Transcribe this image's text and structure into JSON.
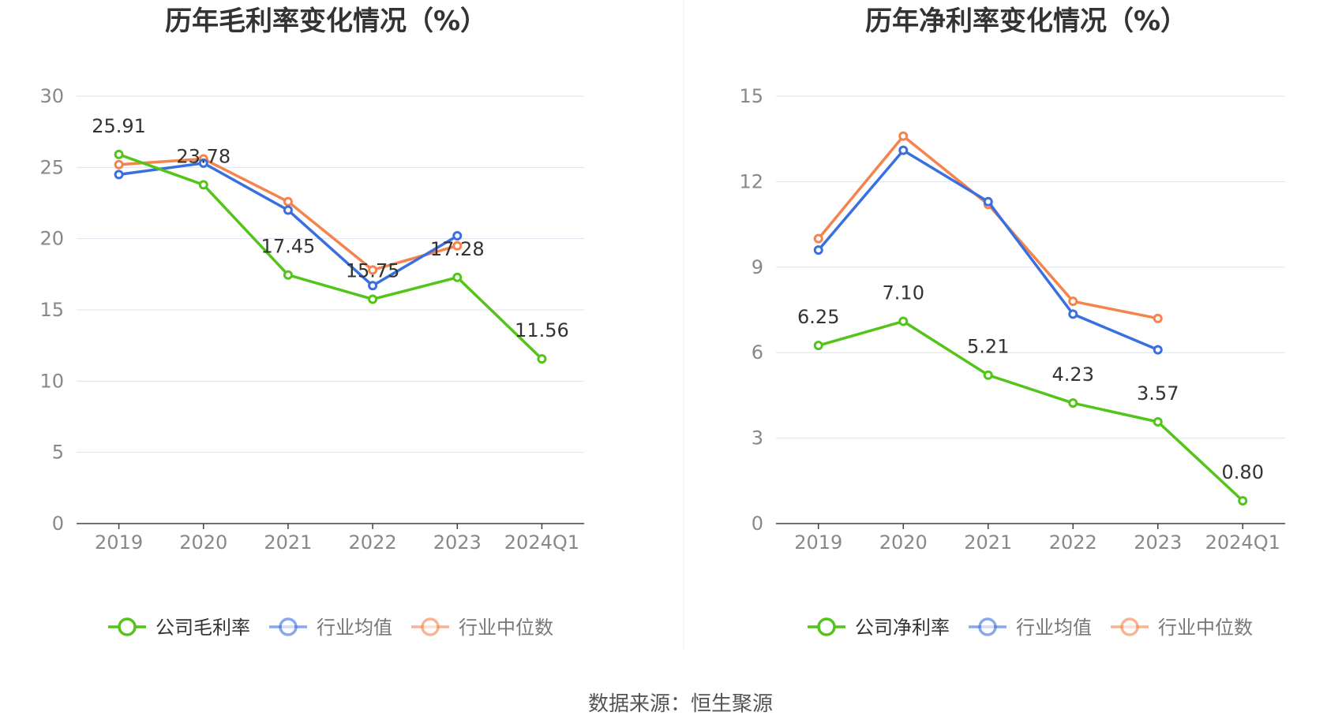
{
  "source_label": "数据来源：恒生聚源",
  "colors": {
    "company": "#52c41a",
    "avg": "#3a6fe0",
    "median": "#f5834d",
    "grid": "#dfe3ef",
    "axis": "#444444"
  },
  "chart_data": [
    {
      "type": "line",
      "title": "历年毛利率变化情况（%）",
      "categories": [
        "2019",
        "2020",
        "2021",
        "2022",
        "2023",
        "2024Q1"
      ],
      "y_ticks": [
        "0",
        "5",
        "10",
        "15",
        "20",
        "25",
        "30"
      ],
      "ylim": [
        0,
        30
      ],
      "grid": true,
      "legend_position": "bottom-center",
      "series": [
        {
          "name": "公司毛利率",
          "color_key": "company",
          "labels": true,
          "values": [
            25.91,
            23.78,
            17.45,
            15.75,
            17.28,
            11.56
          ],
          "label_text": [
            "25.91",
            "23.78",
            "17.45",
            "15.75",
            "17.28",
            "11.56"
          ]
        },
        {
          "name": "行业均值",
          "color_key": "avg",
          "values": [
            24.5,
            25.3,
            22.0,
            16.7,
            20.2,
            null
          ]
        },
        {
          "name": "行业中位数",
          "color_key": "median",
          "values": [
            25.2,
            25.6,
            22.6,
            17.8,
            19.5,
            null
          ]
        }
      ]
    },
    {
      "type": "line",
      "title": "历年净利率变化情况（%）",
      "categories": [
        "2019",
        "2020",
        "2021",
        "2022",
        "2023",
        "2024Q1"
      ],
      "y_ticks": [
        "0",
        "3",
        "6",
        "9",
        "12",
        "15"
      ],
      "ylim": [
        0,
        15
      ],
      "grid": true,
      "legend_position": "bottom-center",
      "series": [
        {
          "name": "公司净利率",
          "color_key": "company",
          "labels": true,
          "values": [
            6.25,
            7.1,
            5.21,
            4.23,
            3.57,
            0.8
          ],
          "label_text": [
            "6.25",
            "7.10",
            "5.21",
            "4.23",
            "3.57",
            "0.80"
          ]
        },
        {
          "name": "行业均值",
          "color_key": "avg",
          "values": [
            9.6,
            13.1,
            11.3,
            7.35,
            6.1,
            null
          ]
        },
        {
          "name": "行业中位数",
          "color_key": "median",
          "values": [
            10.0,
            13.6,
            11.2,
            7.8,
            7.2,
            null
          ]
        }
      ]
    }
  ]
}
